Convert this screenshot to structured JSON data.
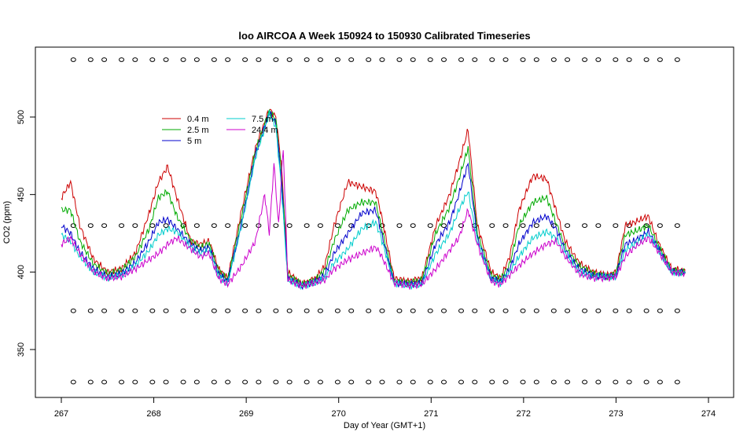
{
  "chart_data": {
    "type": "line",
    "title": "loo AIRCOA A  Week 150924 to 150930  Calibrated Timeseries",
    "xlabel": "Day of Year (GMT+1)",
    "ylabel": "CO2 (ppm)",
    "xlim": [
      267,
      274
    ],
    "ylim": [
      325,
      540
    ],
    "x_ticks": [
      267,
      268,
      269,
      270,
      271,
      272,
      273,
      274
    ],
    "y_ticks": [
      350,
      400,
      450,
      500
    ],
    "legend_position": "top-left",
    "grid": false,
    "calibration_markers": {
      "symbol": "open-circle",
      "levels": [
        537,
        430,
        375,
        329
      ],
      "x_start": 267.13,
      "x_end": 273.75,
      "step": 0.167
    },
    "series": [
      {
        "name": "0.4 m",
        "color": "#cc0000",
        "x": [
          267.0,
          267.1,
          267.2,
          267.35,
          267.5,
          267.65,
          267.8,
          267.95,
          268.05,
          268.15,
          268.25,
          268.4,
          268.5,
          268.6,
          268.7,
          268.8,
          268.95,
          269.1,
          269.25,
          269.32,
          269.38,
          269.45,
          269.6,
          269.75,
          269.85,
          269.95,
          270.1,
          270.25,
          270.4,
          270.45,
          270.6,
          270.75,
          270.9,
          271.05,
          271.2,
          271.3,
          271.4,
          271.5,
          271.65,
          271.75,
          271.85,
          271.95,
          272.1,
          272.25,
          272.35,
          272.45,
          272.6,
          272.75,
          272.9,
          273.0,
          273.1,
          273.2,
          273.35,
          273.45,
          273.6,
          273.75
        ],
        "y": [
          448,
          458,
          430,
          408,
          400,
          402,
          412,
          438,
          458,
          468,
          448,
          420,
          418,
          420,
          402,
          396,
          440,
          480,
          505,
          500,
          470,
          400,
          392,
          396,
          404,
          430,
          458,
          455,
          452,
          440,
          396,
          394,
          396,
          430,
          450,
          470,
          492,
          430,
          400,
          396,
          410,
          440,
          462,
          460,
          440,
          420,
          406,
          400,
          398,
          400,
          430,
          432,
          436,
          420,
          402,
          401
        ]
      },
      {
        "name": "2.5 m",
        "color": "#00aa00",
        "x": [
          267.0,
          267.1,
          267.2,
          267.35,
          267.5,
          267.65,
          267.8,
          267.95,
          268.05,
          268.15,
          268.25,
          268.4,
          268.5,
          268.6,
          268.7,
          268.8,
          268.95,
          269.1,
          269.25,
          269.32,
          269.38,
          269.45,
          269.6,
          269.75,
          269.85,
          269.95,
          270.1,
          270.25,
          270.4,
          270.45,
          270.6,
          270.75,
          270.9,
          271.05,
          271.2,
          271.3,
          271.4,
          271.5,
          271.65,
          271.75,
          271.85,
          271.95,
          272.1,
          272.25,
          272.35,
          272.45,
          272.6,
          272.75,
          272.9,
          273.0,
          273.1,
          273.2,
          273.35,
          273.45,
          273.6,
          273.75
        ],
        "y": [
          440,
          440,
          420,
          405,
          399,
          401,
          410,
          428,
          448,
          452,
          436,
          420,
          416,
          418,
          401,
          395,
          436,
          478,
          504,
          498,
          465,
          398,
          392,
          395,
          401,
          420,
          440,
          445,
          445,
          432,
          394,
          393,
          395,
          425,
          442,
          460,
          480,
          425,
          398,
          395,
          405,
          430,
          445,
          448,
          432,
          416,
          404,
          399,
          397,
          399,
          424,
          426,
          430,
          418,
          401,
          400
        ]
      },
      {
        "name": "5 m",
        "color": "#0000cc",
        "x": [
          267.0,
          267.1,
          267.2,
          267.35,
          267.5,
          267.65,
          267.8,
          267.95,
          268.05,
          268.15,
          268.25,
          268.4,
          268.5,
          268.6,
          268.7,
          268.8,
          268.95,
          269.1,
          269.25,
          269.32,
          269.38,
          269.45,
          269.6,
          269.75,
          269.85,
          269.95,
          270.1,
          270.25,
          270.4,
          270.45,
          270.6,
          270.75,
          270.9,
          271.05,
          271.2,
          271.3,
          271.4,
          271.5,
          271.65,
          271.75,
          271.85,
          271.95,
          272.1,
          272.25,
          272.35,
          272.45,
          272.6,
          272.75,
          272.9,
          273.0,
          273.1,
          273.2,
          273.35,
          273.45,
          273.6,
          273.75
        ],
        "y": [
          430,
          425,
          413,
          402,
          397,
          399,
          406,
          420,
          432,
          434,
          428,
          418,
          414,
          416,
          399,
          394,
          432,
          476,
          503,
          496,
          460,
          396,
          391,
          394,
          398,
          412,
          425,
          438,
          440,
          428,
          393,
          392,
          393,
          418,
          432,
          450,
          470,
          422,
          396,
          394,
          402,
          418,
          432,
          436,
          428,
          414,
          402,
          398,
          397,
          398,
          418,
          420,
          426,
          416,
          400,
          400
        ]
      },
      {
        "name": "7.5 m",
        "color": "#00cccc",
        "x": [
          267.0,
          267.1,
          267.2,
          267.35,
          267.5,
          267.65,
          267.8,
          267.95,
          268.05,
          268.15,
          268.25,
          268.4,
          268.5,
          268.6,
          268.7,
          268.8,
          268.95,
          269.1,
          269.25,
          269.32,
          269.38,
          269.45,
          269.6,
          269.75,
          269.85,
          269.95,
          270.1,
          270.25,
          270.4,
          270.45,
          270.6,
          270.75,
          270.9,
          271.05,
          271.2,
          271.3,
          271.4,
          271.5,
          271.65,
          271.75,
          271.85,
          271.95,
          272.1,
          272.25,
          272.35,
          272.45,
          272.6,
          272.75,
          272.9,
          273.0,
          273.1,
          273.2,
          273.35,
          273.45,
          273.6,
          273.75
        ],
        "y": [
          424,
          420,
          410,
          400,
          396,
          398,
          404,
          414,
          424,
          428,
          426,
          416,
          412,
          414,
          397,
          393,
          430,
          474,
          502,
          494,
          455,
          395,
          391,
          393,
          396,
          406,
          415,
          428,
          432,
          424,
          393,
          391,
          392,
          412,
          425,
          440,
          452,
          420,
          395,
          393,
          400,
          410,
          422,
          426,
          422,
          412,
          400,
          397,
          397,
          397,
          414,
          418,
          424,
          415,
          400,
          399
        ]
      },
      {
        "name": "24.4 m",
        "color": "#cc00cc",
        "x": [
          267.0,
          267.1,
          267.2,
          267.35,
          267.5,
          267.65,
          267.8,
          267.95,
          268.05,
          268.15,
          268.25,
          268.4,
          268.5,
          268.6,
          268.7,
          268.8,
          268.95,
          269.1,
          269.2,
          269.25,
          269.3,
          269.35,
          269.4,
          269.45,
          269.6,
          269.75,
          269.85,
          269.95,
          270.1,
          270.25,
          270.4,
          270.45,
          270.6,
          270.75,
          270.9,
          271.05,
          271.2,
          271.3,
          271.4,
          271.5,
          271.65,
          271.75,
          271.85,
          271.95,
          272.1,
          272.25,
          272.35,
          272.45,
          272.6,
          272.75,
          272.9,
          273.0,
          273.1,
          273.2,
          273.35,
          273.45,
          273.6,
          273.75
        ],
        "y": [
          418,
          422,
          412,
          400,
          396,
          397,
          402,
          408,
          412,
          418,
          422,
          415,
          410,
          412,
          396,
          392,
          404,
          420,
          450,
          425,
          470,
          430,
          480,
          395,
          391,
          393,
          395,
          402,
          408,
          412,
          416,
          412,
          393,
          391,
          392,
          402,
          414,
          422,
          440,
          418,
          394,
          392,
          398,
          404,
          412,
          418,
          420,
          410,
          399,
          396,
          396,
          397,
          410,
          416,
          422,
          414,
          400,
          399
        ]
      }
    ]
  }
}
